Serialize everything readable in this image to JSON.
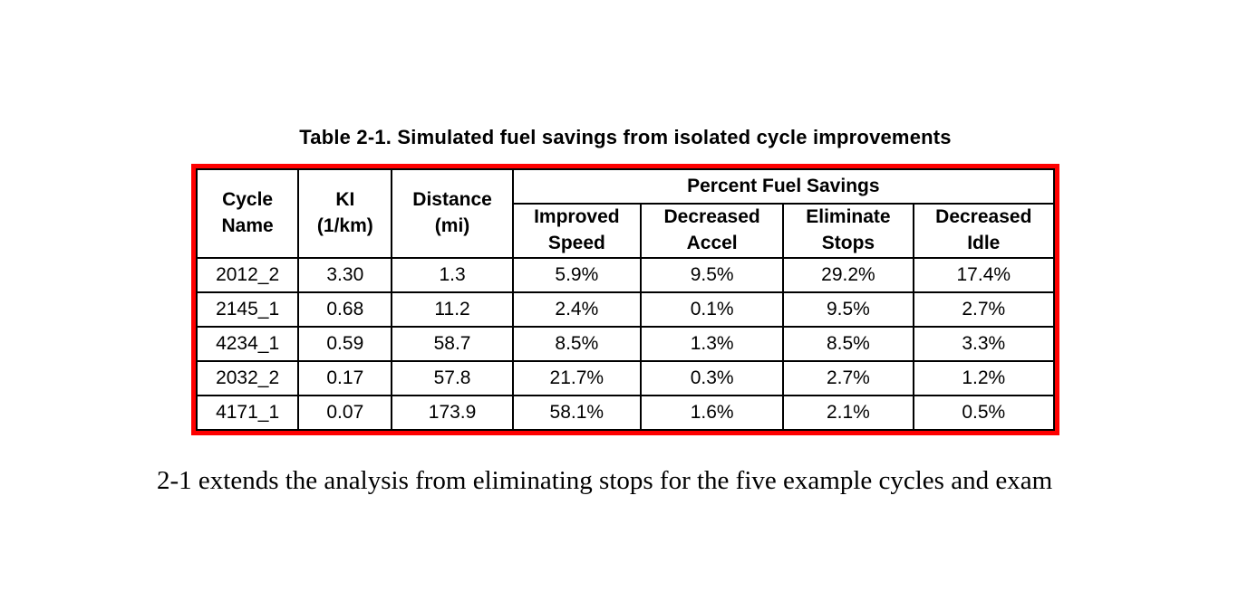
{
  "title": "Table 2-1. Simulated fuel savings from isolated cycle improvements",
  "table": {
    "highlight_border_color": "#fe0000",
    "grid_color": "#000000",
    "header": {
      "cycle_name": "Cycle\nName",
      "ki": "KI\n(1/km)",
      "distance": "Distance\n(mi)",
      "group": "Percent Fuel Savings",
      "improved_speed": "Improved\nSpeed",
      "decreased_accel": "Decreased\nAccel",
      "eliminate_stops": "Eliminate\nStops",
      "decreased_idle": "Decreased\nIdle"
    },
    "rows": [
      {
        "cells": [
          "2012_2",
          "3.30",
          "1.3",
          "5.9%",
          "9.5%",
          "29.2%",
          "17.4%"
        ]
      },
      {
        "cells": [
          "2145_1",
          "0.68",
          "11.2",
          "2.4%",
          "0.1%",
          "9.5%",
          "2.7%"
        ]
      },
      {
        "cells": [
          "4234_1",
          "0.59",
          "58.7",
          "8.5%",
          "1.3%",
          "8.5%",
          "3.3%"
        ]
      },
      {
        "cells": [
          "2032_2",
          "0.17",
          "57.8",
          "21.7%",
          "0.3%",
          "2.7%",
          "1.2%"
        ]
      },
      {
        "cells": [
          "4171_1",
          "0.07",
          "173.9",
          "58.1%",
          "1.6%",
          "2.1%",
          "0.5%"
        ]
      }
    ]
  },
  "body_text": "2-1 extends the analysis from eliminating stops for the five example cycles and exam"
}
